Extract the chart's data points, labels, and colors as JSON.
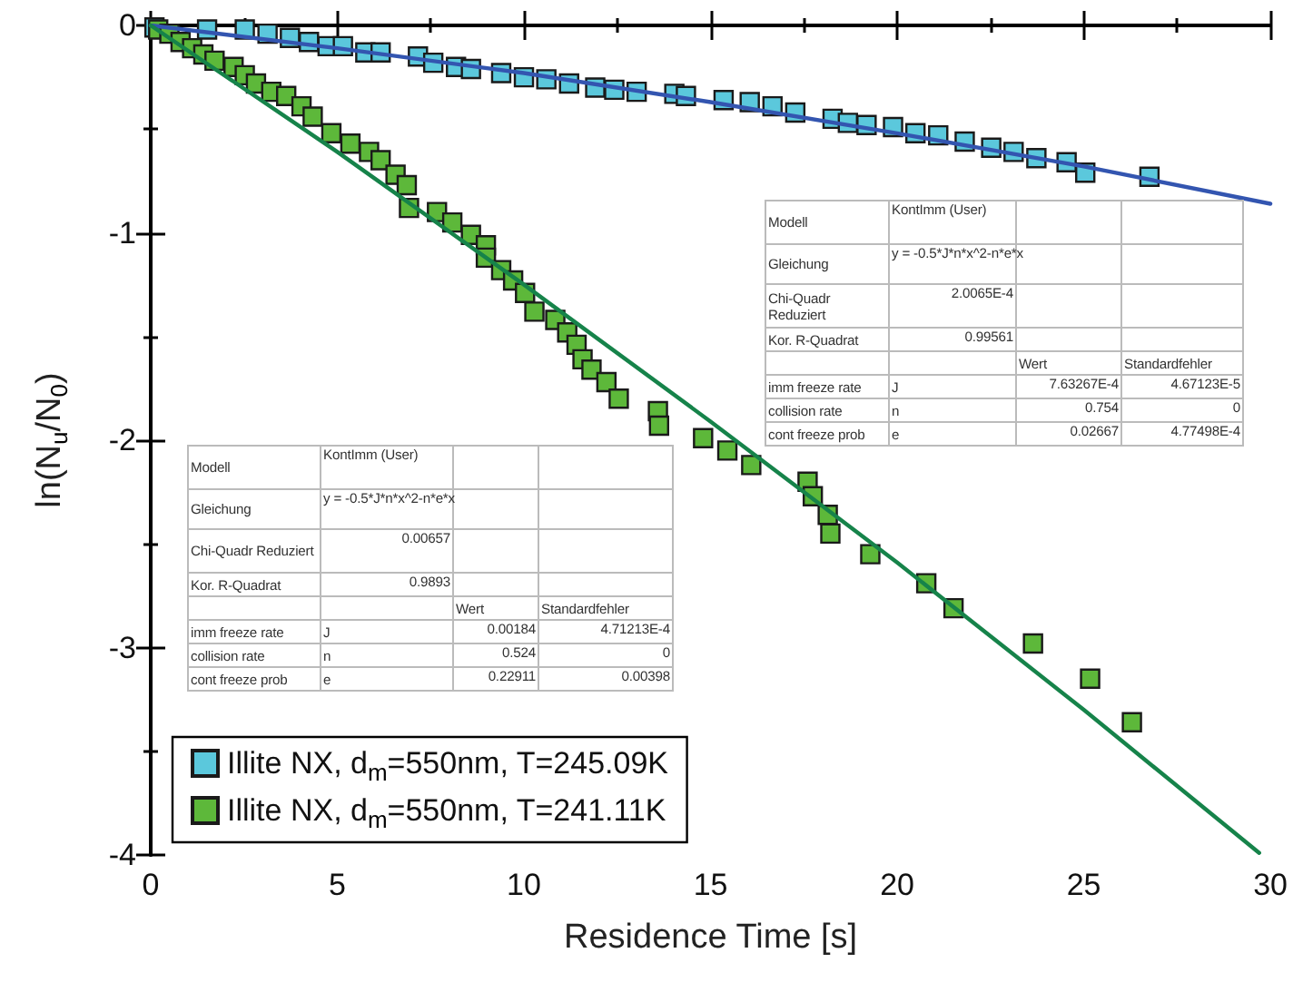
{
  "chart_data": {
    "type": "scatter",
    "xlabel": "Residence Time [s]",
    "ylabel": "ln(N$_{u}$/N$_{0}$)",
    "xlim": [
      0,
      30
    ],
    "ylim": [
      -4,
      0
    ],
    "xticks": [
      0,
      {
        "value": 2.5,
        "label": null
      },
      5,
      {
        "value": 7.5,
        "label": null
      },
      10,
      {
        "value": 12.5,
        "label": null
      },
      15,
      {
        "value": 17.5,
        "label": null
      },
      20,
      {
        "value": 22.5,
        "label": null
      },
      25,
      {
        "value": 27.5,
        "label": null
      },
      30
    ],
    "yticks": [
      -4,
      {
        "value": -3.5,
        "label": null
      },
      -3,
      {
        "value": -2.5,
        "label": null
      },
      -2,
      {
        "value": -1.5,
        "label": null
      },
      -1,
      {
        "value": -0.5,
        "label": null
      },
      0
    ],
    "grid": false,
    "legend": "bottom left",
    "series": [
      {
        "name": "Illite NX, d$_{m}$=550nm, T=245.09K",
        "marker": "square",
        "color": "#5bc8dc",
        "x": [
          0.1,
          1.51,
          2.52,
          3.13,
          3.73,
          4.24,
          4.74,
          5.15,
          5.75,
          6.16,
          7.16,
          7.57,
          8.18,
          8.58,
          9.39,
          10.0,
          10.6,
          11.21,
          11.91,
          12.42,
          13.02,
          14.03,
          14.34,
          15.35,
          16.05,
          16.66,
          17.27,
          18.27,
          18.68,
          19.18,
          19.89,
          20.49,
          21.1,
          21.81,
          22.52,
          23.12,
          23.73,
          24.54,
          25.04,
          26.76
        ],
        "values": [
          -0.01,
          -0.02,
          -0.02,
          -0.04,
          -0.06,
          -0.08,
          -0.1,
          -0.1,
          -0.13,
          -0.13,
          -0.15,
          -0.18,
          -0.2,
          -0.21,
          -0.23,
          -0.25,
          -0.26,
          -0.28,
          -0.3,
          -0.31,
          -0.32,
          -0.33,
          -0.34,
          -0.36,
          -0.37,
          -0.39,
          -0.42,
          -0.45,
          -0.47,
          -0.48,
          -0.49,
          -0.52,
          -0.53,
          -0.56,
          -0.59,
          -0.61,
          -0.64,
          -0.66,
          -0.71,
          -0.73
        ]
      },
      {
        "name": "Illite NX, d$_{m}$=550nm, T=241.11K",
        "marker": "square",
        "color": "#5db83a",
        "x": [
          0.2,
          0.5,
          0.8,
          1.11,
          1.41,
          1.71,
          2.22,
          2.52,
          2.82,
          3.23,
          3.63,
          4.04,
          4.34,
          4.84,
          5.35,
          5.85,
          6.16,
          6.56,
          6.86,
          6.92,
          7.67,
          8.08,
          8.58,
          8.98,
          8.98,
          9.39,
          9.71,
          10.03,
          10.28,
          10.84,
          11.16,
          11.41,
          11.57,
          11.81,
          12.21,
          12.54,
          13.59,
          13.62,
          14.8,
          15.45,
          16.09,
          17.6,
          17.74,
          18.14,
          18.21,
          19.28,
          20.78,
          21.51,
          23.64,
          25.17,
          26.29
        ],
        "values": [
          -0.02,
          -0.04,
          -0.08,
          -0.11,
          -0.14,
          -0.17,
          -0.2,
          -0.24,
          -0.28,
          -0.32,
          -0.34,
          -0.39,
          -0.44,
          -0.52,
          -0.57,
          -0.61,
          -0.65,
          -0.72,
          -0.77,
          -0.88,
          -0.9,
          -0.95,
          -1.01,
          -1.06,
          -1.12,
          -1.18,
          -1.23,
          -1.29,
          -1.38,
          -1.42,
          -1.48,
          -1.54,
          -1.61,
          -1.66,
          -1.72,
          -1.8,
          -1.86,
          -1.93,
          -1.99,
          -2.05,
          -2.12,
          -2.2,
          -2.27,
          -2.36,
          -2.45,
          -2.55,
          -2.69,
          -2.81,
          -2.98,
          -3.15,
          -3.36
        ]
      },
      {
        "type": "line",
        "marker": "none",
        "line_style": "solid",
        "color": "#3355b0",
        "x": [
          0,
          5,
          10,
          15,
          20,
          25,
          30
        ],
        "values": [
          0,
          -0.11,
          -0.23,
          -0.37,
          -0.52,
          -0.68,
          -0.86
        ]
      },
      {
        "type": "line",
        "marker": "none",
        "line_style": "solid",
        "color": "#16834a",
        "x": [
          0,
          5,
          10,
          15,
          20,
          25,
          29.7
        ],
        "values": [
          0,
          -0.61,
          -1.25,
          -1.91,
          -2.59,
          -3.3,
          -3.99
        ]
      }
    ],
    "annotations": [
      "Modell",
      "KontImm (User)",
      "Gleichung",
      "y = -0.5*J*n*x^2-n*e*x",
      "Chi-Quadr Reduziert",
      "2.0065E-4",
      "Kor. R-Quadrat",
      "0.99561",
      "Wert",
      "Standardfehler",
      "imm freeze rate",
      "J",
      "7.63267E-4",
      "4.67123E-5",
      "collision rate",
      "n",
      "0.754",
      "0",
      "cont freeze prob",
      "e",
      "0.02667",
      "4.77498E-4",
      "Modell",
      "KontImm (User)",
      "Gleichung",
      "y = -0.5*J*n*x^2-n*e*x",
      "Chi-Quadr Reduziert",
      "0.00657",
      "Kor. R-Quadrat",
      "0.9893",
      "Wert",
      "Standardfehler",
      "imm freeze rate",
      "J",
      "0.00184",
      "4.71213E-4",
      "collision rate",
      "n",
      "0.524",
      "0",
      "cont freeze prob",
      "e",
      "0.22911",
      "0.00398"
    ]
  }
}
